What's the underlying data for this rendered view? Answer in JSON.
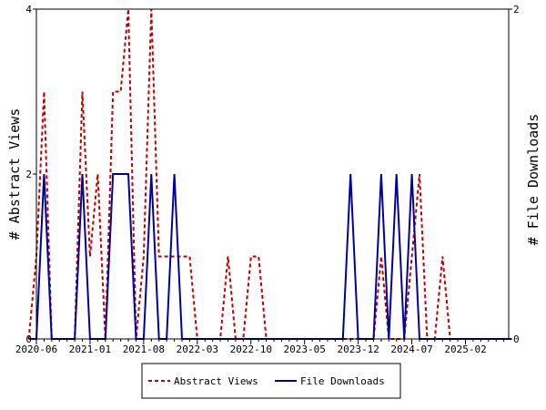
{
  "chart_data": {
    "type": "line",
    "xlabel": "",
    "y_left_label": "# Abstract Views",
    "y_right_label": "# File Downloads",
    "x_tick_labels": [
      "2020-06",
      "2021-01",
      "2021-08",
      "2022-03",
      "2022-10",
      "2023-05",
      "2023-12",
      "2024-07",
      "2025-02"
    ],
    "y_left_ticks": [
      "0",
      "2",
      "4"
    ],
    "y_right_ticks": [
      "0",
      "2"
    ],
    "y_left_range": [
      0,
      4
    ],
    "y_right_range": [
      0,
      2
    ],
    "legend_position": "bottom",
    "grid": false,
    "series": [
      {
        "name": "Abstract Views",
        "axis": "left",
        "color": "#c00000",
        "style": "dashed",
        "points": [
          [
            "2020-05",
            0
          ],
          [
            "2020-06",
            1
          ],
          [
            "2020-07",
            3
          ],
          [
            "2020-08",
            0
          ],
          [
            "2020-09",
            0
          ],
          [
            "2020-10",
            0
          ],
          [
            "2020-11",
            0
          ],
          [
            "2020-12",
            3
          ],
          [
            "2021-01",
            1
          ],
          [
            "2021-02",
            2
          ],
          [
            "2021-03",
            0
          ],
          [
            "2021-04",
            3
          ],
          [
            "2021-05",
            3
          ],
          [
            "2021-06",
            4
          ],
          [
            "2021-07",
            0
          ],
          [
            "2021-08",
            1
          ],
          [
            "2021-09",
            4
          ],
          [
            "2021-10",
            1
          ],
          [
            "2021-11",
            1
          ],
          [
            "2021-12",
            1
          ],
          [
            "2022-01",
            1
          ],
          [
            "2022-02",
            1
          ],
          [
            "2022-03",
            0
          ],
          [
            "2022-04",
            0
          ],
          [
            "2022-05",
            0
          ],
          [
            "2022-06",
            0
          ],
          [
            "2022-07",
            1
          ],
          [
            "2022-08",
            0
          ],
          [
            "2022-09",
            0
          ],
          [
            "2022-10",
            1
          ],
          [
            "2022-11",
            1
          ],
          [
            "2022-12",
            0
          ],
          [
            "2023-01",
            0
          ],
          [
            "2023-02",
            0
          ],
          [
            "2023-03",
            0
          ],
          [
            "2023-04",
            0
          ],
          [
            "2023-05",
            0
          ],
          [
            "2023-06",
            0
          ],
          [
            "2023-07",
            0
          ],
          [
            "2023-08",
            0
          ],
          [
            "2023-09",
            0
          ],
          [
            "2023-10",
            0
          ],
          [
            "2023-11",
            0
          ],
          [
            "2023-12",
            0
          ],
          [
            "2024-01",
            0
          ],
          [
            "2024-02",
            0
          ],
          [
            "2024-03",
            1
          ],
          [
            "2024-04",
            0
          ],
          [
            "2024-05",
            0
          ],
          [
            "2024-06",
            0
          ],
          [
            "2024-07",
            1
          ],
          [
            "2024-08",
            2
          ],
          [
            "2024-09",
            0
          ],
          [
            "2024-10",
            0
          ],
          [
            "2024-11",
            1
          ],
          [
            "2024-12",
            0
          ],
          [
            "2025-01",
            0
          ],
          [
            "2025-02",
            0
          ],
          [
            "2025-03",
            0
          ],
          [
            "2025-04",
            0
          ],
          [
            "2025-05",
            0
          ],
          [
            "2025-06",
            0
          ],
          [
            "2025-07",
            0
          ],
          [
            "2025-08",
            0
          ]
        ]
      },
      {
        "name": "File Downloads",
        "axis": "right",
        "color": "#0000a0",
        "style": "solid",
        "points": [
          [
            "2020-05",
            0
          ],
          [
            "2020-06",
            0
          ],
          [
            "2020-07",
            1
          ],
          [
            "2020-08",
            0
          ],
          [
            "2020-09",
            0
          ],
          [
            "2020-10",
            0
          ],
          [
            "2020-11",
            0
          ],
          [
            "2020-12",
            1
          ],
          [
            "2021-01",
            0
          ],
          [
            "2021-02",
            0
          ],
          [
            "2021-03",
            0
          ],
          [
            "2021-04",
            1
          ],
          [
            "2021-05",
            1
          ],
          [
            "2021-06",
            1
          ],
          [
            "2021-07",
            0
          ],
          [
            "2021-08",
            0
          ],
          [
            "2021-09",
            1
          ],
          [
            "2021-10",
            0
          ],
          [
            "2021-11",
            0
          ],
          [
            "2021-12",
            1
          ],
          [
            "2022-01",
            0
          ],
          [
            "2022-02",
            0
          ],
          [
            "2022-03",
            0
          ],
          [
            "2022-04",
            0
          ],
          [
            "2022-05",
            0
          ],
          [
            "2022-06",
            0
          ],
          [
            "2022-07",
            0
          ],
          [
            "2022-08",
            0
          ],
          [
            "2022-09",
            0
          ],
          [
            "2022-10",
            0
          ],
          [
            "2022-11",
            0
          ],
          [
            "2022-12",
            0
          ],
          [
            "2023-01",
            0
          ],
          [
            "2023-02",
            0
          ],
          [
            "2023-03",
            0
          ],
          [
            "2023-04",
            0
          ],
          [
            "2023-05",
            0
          ],
          [
            "2023-06",
            0
          ],
          [
            "2023-07",
            0
          ],
          [
            "2023-08",
            0
          ],
          [
            "2023-09",
            0
          ],
          [
            "2023-10",
            0
          ],
          [
            "2023-11",
            1
          ],
          [
            "2023-12",
            0
          ],
          [
            "2024-01",
            0
          ],
          [
            "2024-02",
            0
          ],
          [
            "2024-03",
            1
          ],
          [
            "2024-04",
            0
          ],
          [
            "2024-05",
            1
          ],
          [
            "2024-06",
            0
          ],
          [
            "2024-07",
            1
          ],
          [
            "2024-08",
            0
          ],
          [
            "2024-09",
            0
          ],
          [
            "2024-10",
            0
          ],
          [
            "2024-11",
            0
          ],
          [
            "2024-12",
            0
          ],
          [
            "2025-01",
            0
          ],
          [
            "2025-02",
            0
          ],
          [
            "2025-03",
            0
          ],
          [
            "2025-04",
            0
          ],
          [
            "2025-05",
            0
          ],
          [
            "2025-06",
            0
          ],
          [
            "2025-07",
            0
          ],
          [
            "2025-08",
            0
          ]
        ]
      }
    ]
  }
}
